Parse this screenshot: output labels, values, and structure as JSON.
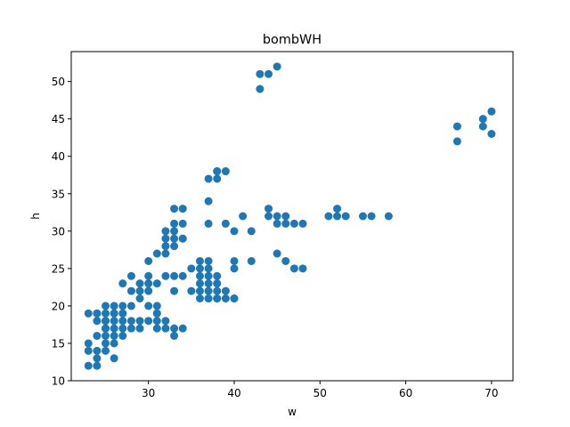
{
  "chart_data": {
    "type": "scatter",
    "title": "bombWH",
    "xlabel": "w",
    "ylabel": "h",
    "xlim": [
      21,
      72.5
    ],
    "ylim": [
      10,
      54
    ],
    "xticks": [
      30,
      40,
      50,
      60,
      70
    ],
    "yticks": [
      10,
      15,
      20,
      25,
      30,
      35,
      40,
      45,
      50
    ],
    "grid": false,
    "legend": "none",
    "marker_color": "#1f77b4",
    "x": [
      23,
      23,
      23,
      23,
      24,
      24,
      24,
      24,
      24,
      24,
      24,
      25,
      25,
      25,
      25,
      25,
      25,
      25,
      25,
      25,
      26,
      26,
      26,
      26,
      26,
      26,
      26,
      26,
      27,
      27,
      27,
      27,
      27,
      27,
      27,
      28,
      28,
      28,
      28,
      28,
      29,
      29,
      29,
      29,
      29,
      30,
      30,
      30,
      30,
      30,
      30,
      31,
      31,
      31,
      31,
      31,
      31,
      31,
      32,
      32,
      32,
      32,
      32,
      32,
      32,
      33,
      33,
      33,
      33,
      33,
      33,
      33,
      33,
      33,
      34,
      34,
      34,
      34,
      34,
      34,
      35,
      35,
      36,
      36,
      36,
      36,
      36,
      36,
      37,
      37,
      37,
      37,
      37,
      37,
      37,
      37,
      37,
      37,
      38,
      38,
      38,
      38,
      38,
      38,
      38,
      38,
      38,
      39,
      39,
      39,
      39,
      40,
      40,
      40,
      40,
      40,
      41,
      42,
      42,
      43,
      43,
      44,
      44,
      44,
      45,
      45,
      45,
      45,
      46,
      46,
      46,
      47,
      47,
      48,
      48,
      51,
      52,
      52,
      53,
      55,
      56,
      58,
      66,
      66,
      69,
      69,
      70,
      70
    ],
    "y": [
      12,
      14,
      15,
      19,
      12,
      13,
      14,
      16,
      18,
      19,
      19,
      14,
      15,
      16,
      17,
      17,
      18,
      18,
      19,
      20,
      13,
      15,
      16,
      17,
      18,
      19,
      19,
      20,
      16,
      17,
      18,
      19,
      19,
      20,
      23,
      17,
      18,
      20,
      22,
      24,
      17,
      18,
      21,
      22,
      23,
      18,
      20,
      22,
      23,
      24,
      26,
      17,
      18,
      19,
      19,
      20,
      23,
      27,
      17,
      18,
      24,
      27,
      28,
      29,
      30,
      16,
      17,
      22,
      24,
      28,
      30,
      33,
      31,
      29,
      17,
      24,
      29,
      31,
      33,
      29,
      22,
      25,
      21,
      22,
      23,
      24,
      25,
      26,
      21,
      21,
      22,
      23,
      24,
      25,
      26,
      31,
      34,
      37,
      21,
      21,
      22,
      23,
      23,
      24,
      37,
      38,
      38,
      21,
      22,
      31,
      38,
      21,
      21,
      25,
      26,
      30,
      32,
      26,
      30,
      49,
      51,
      32,
      33,
      51,
      27,
      31,
      32,
      52,
      26,
      31,
      32,
      25,
      31,
      25,
      31,
      32,
      32,
      33,
      32,
      32,
      32,
      32,
      42,
      44,
      44,
      45,
      43,
      46
    ]
  }
}
